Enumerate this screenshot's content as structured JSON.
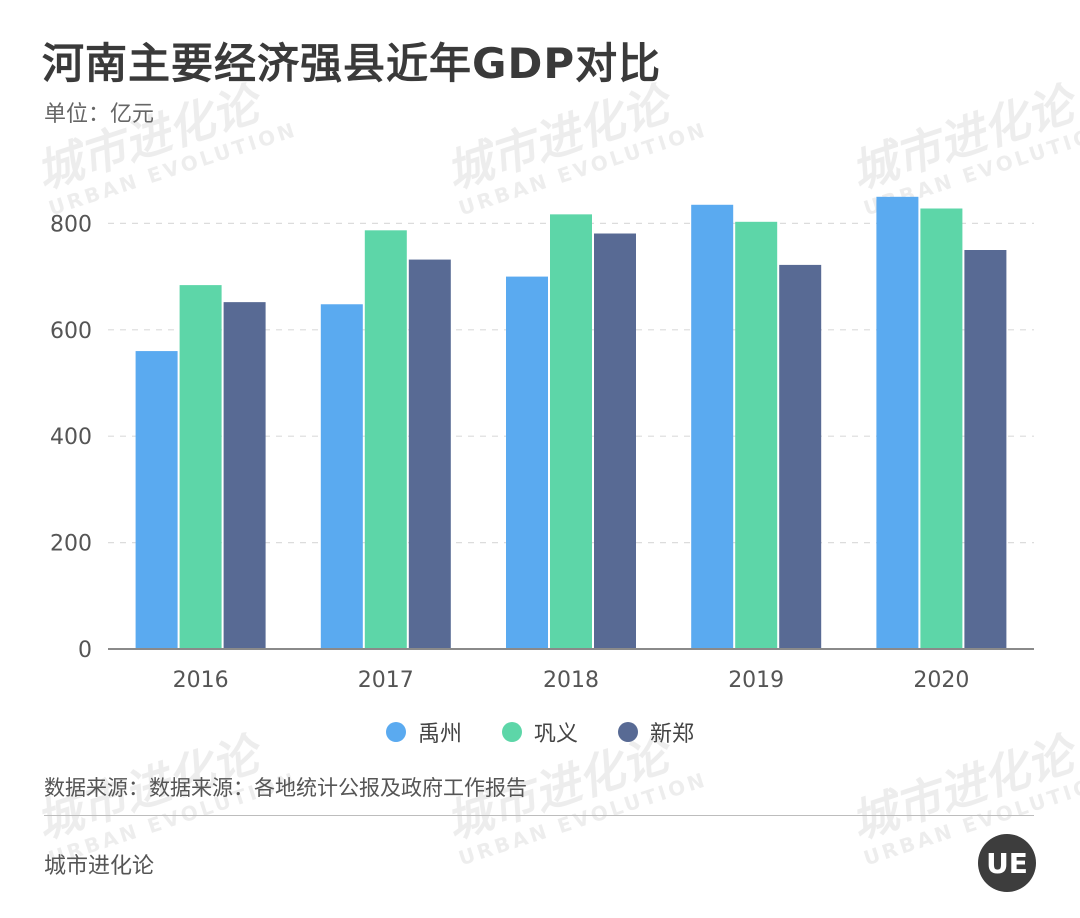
{
  "title": "河南主要经济强县近年GDP对比",
  "unit": "单位：亿元",
  "source": "数据来源：数据来源：各地统计公报及政府工作报告",
  "brand": "城市进化论",
  "logo_text": "UE",
  "watermark": {
    "cn": "城市进化论",
    "en": "URBAN EVOLUTION"
  },
  "colors": {
    "yuzhou": "#5aaaf0",
    "gongyi": "#5dd6a8",
    "xinzheng": "#586a94"
  },
  "chart_data": {
    "type": "bar",
    "categories": [
      "2016",
      "2017",
      "2018",
      "2019",
      "2020"
    ],
    "series": [
      {
        "name": "禹州",
        "values": [
          560,
          648,
          700,
          835,
          850
        ]
      },
      {
        "name": "巩义",
        "values": [
          684,
          787,
          817,
          803,
          828
        ]
      },
      {
        "name": "新郑",
        "values": [
          652,
          732,
          781,
          722,
          750
        ]
      }
    ],
    "yticks": [
      "0",
      "200",
      "400",
      "600",
      "800"
    ],
    "ylim": [
      0,
      900
    ],
    "grid": true,
    "legend_position": "bottom"
  }
}
